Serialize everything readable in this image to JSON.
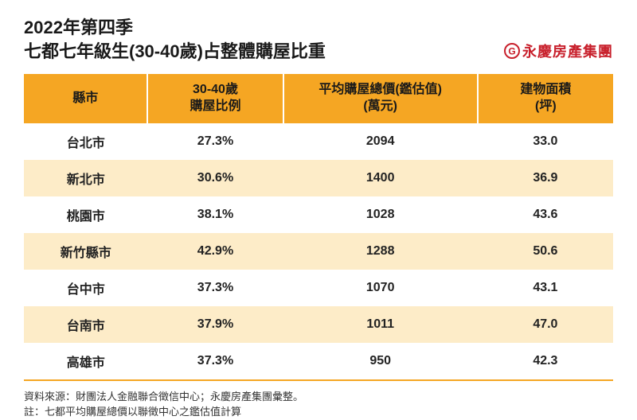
{
  "title": {
    "line1": "2022年第四季",
    "line2": "七都七年級生(30-40歲)占整體購屋比重"
  },
  "logo": {
    "text": "永慶房產集團",
    "ring_color": "#c8202c",
    "g_color": "#c8202c"
  },
  "table": {
    "header_bg": "#f5a623",
    "row_even_bg": "#fdecc8",
    "row_odd_bg": "#ffffff",
    "text_color": "#1a1a1a",
    "columns": [
      "縣市",
      "30-40歲\n購屋比例",
      "平均購屋總價(鑑估值)\n(萬元)",
      "建物面積\n(坪)"
    ],
    "col_widths": [
      "21%",
      "23%",
      "33%",
      "23%"
    ],
    "rows": [
      [
        "台北市",
        "27.3%",
        "2094",
        "33.0"
      ],
      [
        "新北市",
        "30.6%",
        "1400",
        "36.9"
      ],
      [
        "桃園市",
        "38.1%",
        "1028",
        "43.6"
      ],
      [
        "新竹縣市",
        "42.9%",
        "1288",
        "50.6"
      ],
      [
        "台中市",
        "37.3%",
        "1070",
        "43.1"
      ],
      [
        "台南市",
        "37.9%",
        "1011",
        "47.0"
      ],
      [
        "高雄市",
        "37.3%",
        "950",
        "42.3"
      ]
    ]
  },
  "footnote": {
    "line1": "資料來源：財團法人金融聯合徵信中心；永慶房產集團彙整。",
    "line2": "註：七都平均購屋總價以聯徵中心之鑑估值計算"
  }
}
